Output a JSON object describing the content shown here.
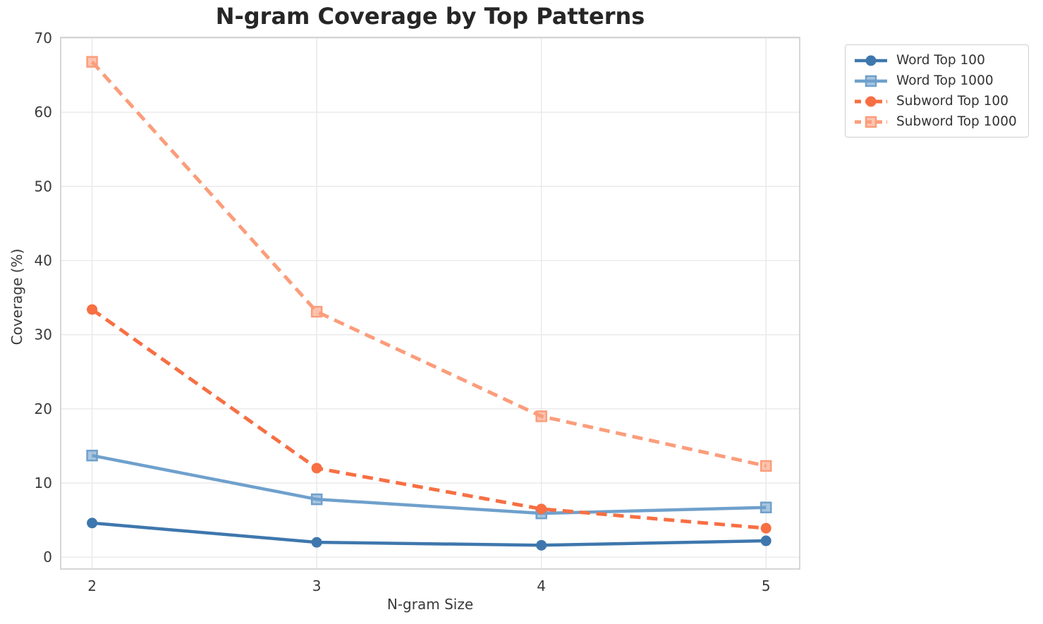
{
  "chart_data": {
    "type": "line",
    "title": "N-gram Coverage by Top Patterns",
    "xlabel": "N-gram Size",
    "ylabel": "Coverage (%)",
    "x": [
      2,
      3,
      4,
      5
    ],
    "xticks": [
      "2",
      "3",
      "4",
      "5"
    ],
    "yticks": [
      "0",
      "10",
      "20",
      "30",
      "40",
      "50",
      "60",
      "70"
    ],
    "ytick_values": [
      0,
      10,
      20,
      30,
      40,
      50,
      60,
      70
    ],
    "xlim": [
      1.86,
      5.15
    ],
    "ylim": [
      -1.6,
      70.1
    ],
    "grid": true,
    "legend_position": "outside upper right",
    "series": [
      {
        "name": "Word Top 100",
        "color": "#3e77ad",
        "marker": "circle",
        "line": "solid",
        "values": [
          4.6,
          2.0,
          1.6,
          2.2
        ]
      },
      {
        "name": "Word Top 1000",
        "color": "#6fa0cc",
        "marker": "square",
        "line": "solid",
        "values": [
          13.7,
          7.8,
          5.9,
          6.7
        ]
      },
      {
        "name": "Subword Top 100",
        "color": "#f76f43",
        "marker": "circle",
        "line": "dashed",
        "values": [
          33.4,
          12.0,
          6.5,
          3.9
        ]
      },
      {
        "name": "Subword Top 1000",
        "color": "#fb9d7b",
        "marker": "square",
        "line": "dashed",
        "values": [
          66.8,
          33.1,
          19.0,
          12.3
        ]
      }
    ]
  },
  "style_colors": {
    "grid": "#e9e9e9",
    "spine": "#cccccc",
    "tick_text": "#3a3a3a",
    "title_text": "#262626",
    "background": "#ffffff"
  }
}
